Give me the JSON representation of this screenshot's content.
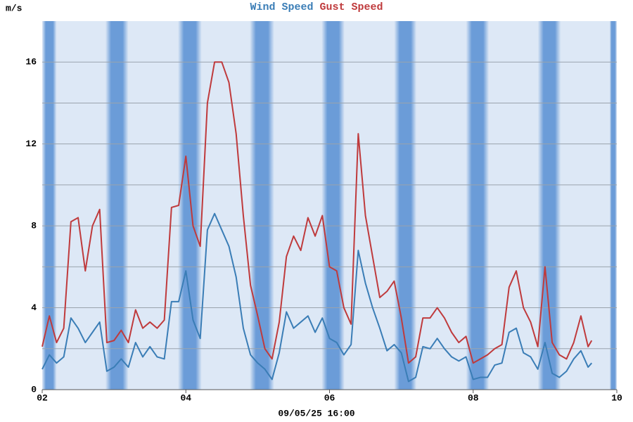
{
  "chart_data": {
    "type": "line",
    "y_label": "m/s",
    "x_label": "09/05/25 16:00",
    "legend_position": "top",
    "background": "#dde8f6",
    "band_color": "#6b9cd8",
    "night_bands": [
      [
        2.0,
        2.2
      ],
      [
        2.88,
        3.2
      ],
      [
        3.89,
        4.22
      ],
      [
        4.89,
        5.23
      ],
      [
        5.89,
        6.21
      ],
      [
        6.9,
        7.21
      ],
      [
        7.9,
        8.22
      ],
      [
        8.9,
        9.22
      ],
      [
        9.9,
        10.0
      ]
    ],
    "xlim": [
      2,
      10
    ],
    "xticks": [
      {
        "value": 2,
        "label": "02"
      },
      {
        "value": 4,
        "label": "04"
      },
      {
        "value": 6,
        "label": "06"
      },
      {
        "value": 8,
        "label": "08"
      },
      {
        "value": 10,
        "label": "10"
      }
    ],
    "ylim": [
      0,
      18
    ],
    "yticks": [
      0,
      4,
      8,
      12,
      16
    ],
    "minor_grid": [
      2,
      6,
      10,
      14
    ],
    "grid": true,
    "x": [
      2.0,
      2.1,
      2.2,
      2.3,
      2.4,
      2.5,
      2.6,
      2.7,
      2.8,
      2.9,
      3.0,
      3.1,
      3.2,
      3.3,
      3.4,
      3.5,
      3.6,
      3.7,
      3.8,
      3.9,
      4.0,
      4.1,
      4.2,
      4.3,
      4.4,
      4.5,
      4.6,
      4.7,
      4.8,
      4.9,
      5.0,
      5.1,
      5.2,
      5.3,
      5.4,
      5.5,
      5.6,
      5.7,
      5.8,
      5.9,
      6.0,
      6.1,
      6.2,
      6.3,
      6.4,
      6.5,
      6.6,
      6.7,
      6.8,
      6.9,
      7.0,
      7.1,
      7.2,
      7.3,
      7.4,
      7.5,
      7.6,
      7.7,
      7.8,
      7.9,
      8.0,
      8.1,
      8.2,
      8.3,
      8.4,
      8.5,
      8.6,
      8.7,
      8.8,
      8.9,
      9.0,
      9.1,
      9.2,
      9.3,
      9.4,
      9.5,
      9.6,
      9.65
    ],
    "series": [
      {
        "name": "Wind Speed",
        "color": "#3a7db6",
        "values": [
          1.0,
          1.7,
          1.3,
          1.6,
          3.5,
          3.0,
          2.3,
          2.8,
          3.3,
          0.9,
          1.1,
          1.5,
          1.1,
          2.3,
          1.6,
          2.1,
          1.6,
          1.5,
          4.3,
          4.3,
          5.8,
          3.4,
          2.5,
          7.8,
          8.6,
          7.8,
          7.0,
          5.5,
          3.0,
          1.7,
          1.3,
          1.0,
          0.5,
          1.8,
          3.8,
          3.0,
          3.3,
          3.6,
          2.8,
          3.5,
          2.5,
          2.3,
          1.7,
          2.2,
          6.8,
          5.2,
          4.0,
          3.0,
          1.9,
          2.2,
          1.8,
          0.4,
          0.6,
          2.1,
          2.0,
          2.5,
          2.0,
          1.6,
          1.4,
          1.6,
          0.5,
          0.6,
          0.6,
          1.2,
          1.3,
          2.8,
          3.0,
          1.8,
          1.6,
          1.0,
          2.3,
          0.8,
          0.6,
          0.9,
          1.5,
          1.9,
          1.1,
          1.3
        ]
      },
      {
        "name": "Gust Speed",
        "color": "#bf3a3c",
        "values": [
          2.1,
          3.6,
          2.3,
          3.0,
          8.2,
          8.4,
          5.8,
          8.0,
          8.8,
          2.3,
          2.4,
          2.9,
          2.3,
          3.9,
          3.0,
          3.3,
          3.0,
          3.4,
          8.9,
          9.0,
          11.4,
          8.0,
          7.0,
          14.0,
          16.0,
          16.0,
          15.0,
          12.5,
          8.5,
          5.1,
          3.6,
          2.0,
          1.5,
          3.3,
          6.5,
          7.5,
          6.8,
          8.4,
          7.5,
          8.5,
          6.0,
          5.8,
          4.0,
          3.2,
          12.5,
          8.5,
          6.5,
          4.5,
          4.8,
          5.3,
          3.5,
          1.3,
          1.6,
          3.5,
          3.5,
          4.0,
          3.5,
          2.8,
          2.3,
          2.6,
          1.3,
          1.5,
          1.7,
          2.0,
          2.2,
          5.0,
          5.8,
          4.0,
          3.3,
          2.1,
          6.0,
          2.3,
          1.7,
          1.5,
          2.3,
          3.6,
          2.1,
          2.4
        ]
      }
    ]
  }
}
